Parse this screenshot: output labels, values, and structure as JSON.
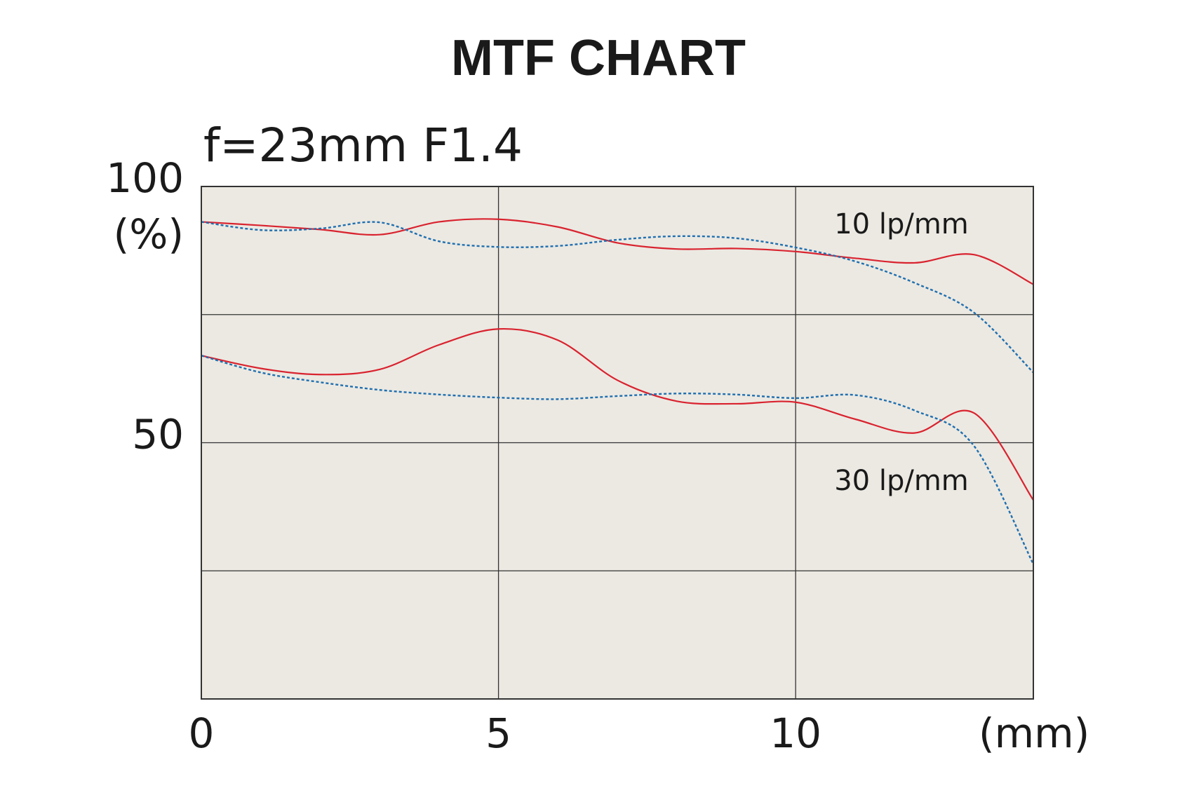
{
  "chart_data": {
    "type": "line",
    "title": "MTF CHART",
    "subtitle": "f=23mm F1.4",
    "y_label": "(%)",
    "x_label": "(mm)",
    "x": [
      0,
      1,
      2,
      3,
      4,
      5,
      6,
      7,
      8,
      9,
      10,
      11,
      12,
      13,
      14
    ],
    "xlim": [
      0,
      14
    ],
    "xticks": [
      0,
      5,
      10
    ],
    "ylim": [
      0,
      100
    ],
    "yticks": [
      50,
      100
    ],
    "minor_yticks": [
      25,
      75
    ],
    "grid": true,
    "series_groups": [
      {
        "name": "10 lp/mm",
        "series": [
          {
            "color": "#d9232f",
            "style": "solid",
            "values": [
              93.1,
              92.4,
              91.6,
              90.6,
              93.1,
              93.6,
              92.1,
              89.0,
              87.8,
              87.9,
              87.3,
              86.0,
              85.1,
              86.7,
              80.9
            ]
          },
          {
            "color": "#1f6fb0",
            "style": "dotted",
            "values": [
              93.1,
              91.5,
              91.8,
              93.0,
              89.3,
              88.2,
              88.4,
              89.6,
              90.3,
              89.9,
              88.1,
              85.4,
              81.2,
              75.4,
              63.7
            ]
          }
        ]
      },
      {
        "name": "30 lp/mm",
        "series": [
          {
            "color": "#d9232f",
            "style": "solid",
            "values": [
              67.0,
              64.5,
              63.3,
              64.3,
              69.1,
              72.2,
              70.0,
              62.2,
              58.1,
              57.6,
              57.9,
              54.6,
              51.9,
              55.8,
              38.8
            ]
          },
          {
            "color": "#1f6fb0",
            "style": "dotted",
            "values": [
              67.0,
              63.7,
              61.8,
              60.3,
              59.4,
              58.8,
              58.5,
              59.1,
              59.6,
              59.4,
              58.7,
              59.3,
              56.3,
              49.4,
              26.3
            ]
          }
        ]
      }
    ]
  }
}
